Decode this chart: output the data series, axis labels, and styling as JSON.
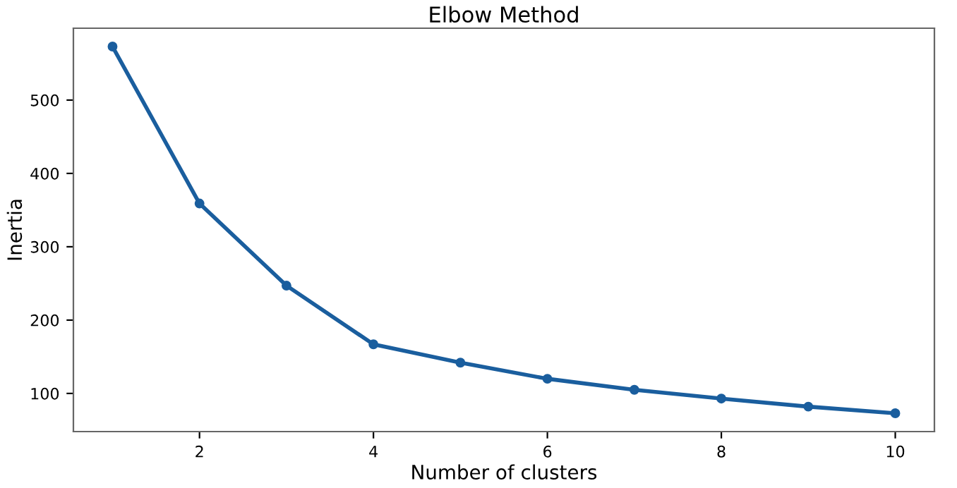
{
  "chart_data": {
    "type": "line",
    "title": "Elbow Method",
    "xlabel": "Number of clusters",
    "ylabel": "Inertia",
    "x": [
      1,
      2,
      3,
      4,
      5,
      6,
      7,
      8,
      9,
      10
    ],
    "series": [
      {
        "color": "#1a5e9e",
        "values": [
          573,
          359,
          247,
          167,
          142,
          120,
          105,
          93,
          82,
          73
        ]
      }
    ],
    "xlim": [
      0.55,
      10.45
    ],
    "ylim": [
      48,
      598
    ],
    "xticks": [
      2,
      4,
      6,
      8,
      10
    ],
    "yticks": [
      100,
      200,
      300,
      400,
      500
    ],
    "marker": "circle",
    "line_style": "solid",
    "grid": false,
    "legend": false
  }
}
